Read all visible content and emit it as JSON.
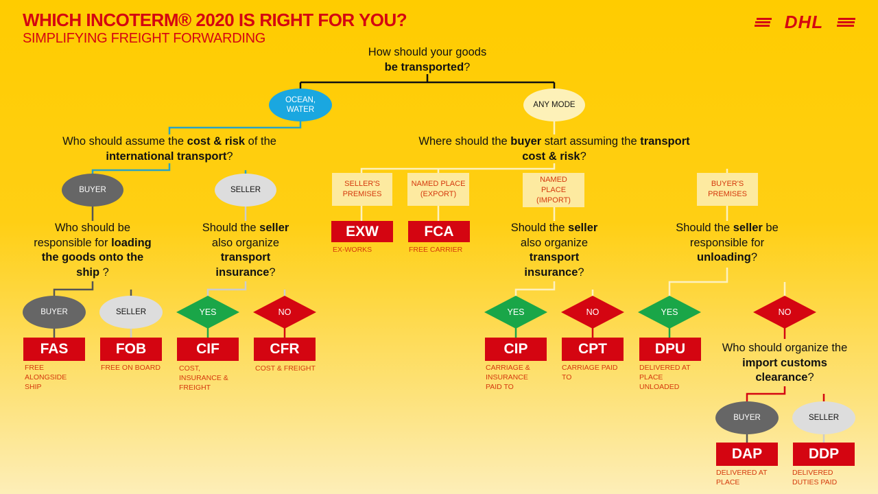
{
  "header": {
    "title": "WHICH INCOTERM® 2020 IS RIGHT FOR YOU?",
    "subtitle": "SIMPLIFYING FREIGHT FORWARDING",
    "logo_text": "DHL"
  },
  "colors": {
    "brand_red": "#d40511",
    "brand_yellow": "#ffcc00",
    "yes_green": "#1aa648",
    "ocean_blue": "#1aa7e0"
  },
  "root": {
    "q1": "How should your goods",
    "q2b": "be transported",
    "q2e": "?"
  },
  "modes": {
    "ocean": "OCEAN, WATER",
    "any": "ANY MODE"
  },
  "ocean_q": {
    "a": "Who should assume the ",
    "b": "cost & risk",
    "c": " of the",
    "d": "international transport",
    "e": "?"
  },
  "ocean_choices": {
    "buyer": "BUYER",
    "seller": "SELLER"
  },
  "loading_q": {
    "a": "Who should be",
    "b": "responsible for ",
    "c": "loading",
    "d": "the goods onto the",
    "e": "ship",
    "f": " ?"
  },
  "loading_choices": {
    "buyer": "BUYER",
    "seller": "SELLER"
  },
  "ins_q": {
    "a": "Should the ",
    "b": "seller",
    "c": "also organize",
    "d": "transport",
    "e": "insurance",
    "f": "?"
  },
  "ins_choices": {
    "yes": "YES",
    "no": "NO"
  },
  "any_q": {
    "a": "Where should the ",
    "b": "buyer",
    "c": " start assuming the ",
    "d": "transport",
    "e": "cost & risk",
    "f": "?"
  },
  "places": [
    "SELLER'S PREMISES",
    "NAMED PLACE (EXPORT)",
    "NAMED PLACE (IMPORT)",
    "BUYER'S PREMISES"
  ],
  "ins2_q": {
    "a": "Should the ",
    "b": "seller",
    "c": "also organize",
    "d": "transport",
    "e": "insurance",
    "f": "?"
  },
  "ins2_choices": {
    "yes": "YES",
    "no": "NO"
  },
  "unload_q": {
    "a": "Should the ",
    "b": "seller",
    "c": " be",
    "d": "responsible for",
    "e": "unloading",
    "f": "?"
  },
  "unload_choices": {
    "yes": "YES",
    "no": "NO"
  },
  "customs_q": {
    "a": "Who should organize the",
    "b": "import customs",
    "c": "clearance",
    "d": "?"
  },
  "customs_choices": {
    "buyer": "BUYER",
    "seller": "SELLER"
  },
  "terms": {
    "fas": {
      "code": "FAS",
      "name": "FREE ALONGSIDE SHIP"
    },
    "fob": {
      "code": "FOB",
      "name": "FREE ON BOARD"
    },
    "cif": {
      "code": "CIF",
      "name": "COST, INSURANCE & FREIGHT"
    },
    "cfr": {
      "code": "CFR",
      "name": "COST & FREIGHT"
    },
    "exw": {
      "code": "EXW",
      "name": "EX-WORKS"
    },
    "fca": {
      "code": "FCA",
      "name": "FREE CARRIER"
    },
    "cip": {
      "code": "CIP",
      "name": "CARRIAGE & INSURANCE PAID TO"
    },
    "cpt": {
      "code": "CPT",
      "name": "CARRIAGE PAID TO"
    },
    "dpu": {
      "code": "DPU",
      "name": "DELIVERED AT PLACE UNLOADED"
    },
    "dap": {
      "code": "DAP",
      "name": "DELIVERED AT PLACE"
    },
    "ddp": {
      "code": "DDP",
      "name": "DELIVERED DUTIES PAID"
    }
  }
}
